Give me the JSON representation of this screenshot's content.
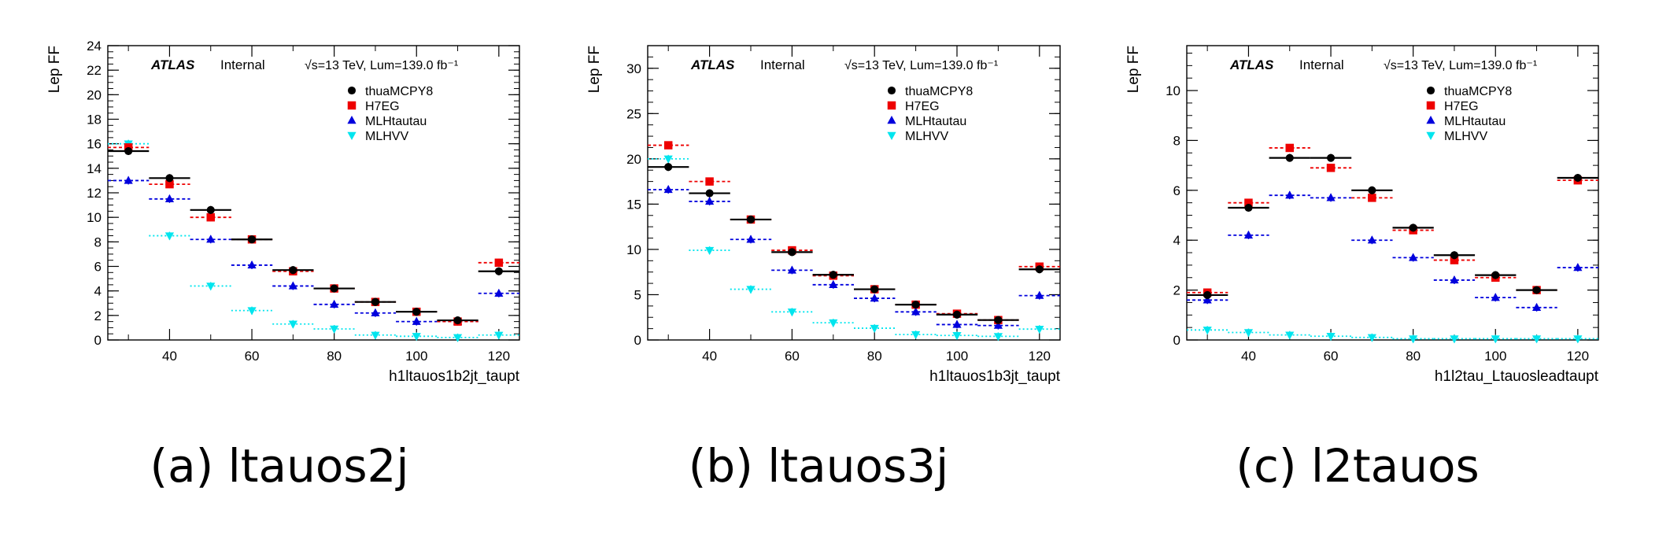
{
  "figure": {
    "ylabel": "Lep FF",
    "atlas_label": "ATLAS",
    "internal_label": "Internal",
    "energy_label": "√s=13 TeV, Lum=139.0 fb⁻¹",
    "legend": [
      "thuaMCPY8",
      "H7EG",
      "MLHtautau",
      "MLHVV"
    ],
    "colors": {
      "thuaMCPY8": "#000000",
      "H7EG": "#ee0000",
      "MLHtautau": "#0000dd",
      "MLHVV": "#00e5ee"
    }
  },
  "chart_data": [
    {
      "type": "scatter",
      "caption": "(a) ltauos2j",
      "xlabel": "h1ltauos1b2jt_taupt",
      "ylabel": "Lep FF",
      "xlim": [
        25,
        125
      ],
      "ylim": [
        0,
        24
      ],
      "xticks": [
        40,
        60,
        80,
        100,
        120
      ],
      "yticks": [
        0,
        2,
        4,
        6,
        8,
        10,
        12,
        14,
        16,
        18,
        20,
        22,
        24
      ],
      "legend_position": "top-right",
      "x": [
        30,
        40,
        50,
        60,
        70,
        80,
        90,
        100,
        110,
        120
      ],
      "series": [
        {
          "name": "thuaMCPY8",
          "marker": "circle",
          "values": [
            15.4,
            13.2,
            10.6,
            8.2,
            5.7,
            4.2,
            3.1,
            2.3,
            1.6,
            5.6
          ]
        },
        {
          "name": "H7EG",
          "marker": "square",
          "values": [
            15.7,
            12.7,
            10.0,
            8.2,
            5.6,
            4.2,
            3.1,
            2.3,
            1.5,
            6.3
          ]
        },
        {
          "name": "MLHtautau",
          "marker": "triangle-up",
          "values": [
            13.0,
            11.5,
            8.2,
            6.1,
            4.4,
            2.9,
            2.2,
            1.5,
            1.5,
            3.8
          ]
        },
        {
          "name": "MLHVV",
          "marker": "triangle-down",
          "values": [
            16.0,
            8.5,
            4.4,
            2.4,
            1.3,
            0.9,
            0.4,
            0.3,
            0.2,
            0.4
          ]
        }
      ]
    },
    {
      "type": "scatter",
      "caption": "(b) ltauos3j",
      "xlabel": "h1ltauos1b3jt_taupt",
      "ylabel": "Lep FF",
      "xlim": [
        25,
        125
      ],
      "ylim": [
        0,
        32.5
      ],
      "xticks": [
        40,
        60,
        80,
        100,
        120
      ],
      "yticks": [
        0,
        5,
        10,
        15,
        20,
        25,
        30
      ],
      "legend_position": "top-right",
      "x": [
        30,
        40,
        50,
        60,
        70,
        80,
        90,
        100,
        110,
        120
      ],
      "series": [
        {
          "name": "thuaMCPY8",
          "marker": "circle",
          "values": [
            19.1,
            16.2,
            13.3,
            9.7,
            7.2,
            5.6,
            3.9,
            2.8,
            2.2,
            7.8
          ]
        },
        {
          "name": "H7EG",
          "marker": "square",
          "values": [
            21.5,
            17.5,
            13.3,
            9.9,
            7.1,
            5.6,
            3.9,
            2.9,
            2.2,
            8.1
          ]
        },
        {
          "name": "MLHtautau",
          "marker": "triangle-up",
          "values": [
            16.6,
            15.3,
            11.1,
            7.7,
            6.1,
            4.6,
            3.1,
            1.7,
            1.6,
            4.9
          ]
        },
        {
          "name": "MLHVV",
          "marker": "triangle-down",
          "values": [
            20.0,
            9.9,
            5.6,
            3.1,
            1.9,
            1.3,
            0.6,
            0.5,
            0.4,
            1.2
          ]
        }
      ]
    },
    {
      "type": "scatter",
      "caption": "(c) l2tauos",
      "xlabel": "h1l2tau_Ltauosleadtaupt",
      "ylabel": "Lep FF",
      "xlim": [
        25,
        125
      ],
      "ylim": [
        0,
        11.8
      ],
      "xticks": [
        40,
        60,
        80,
        100,
        120
      ],
      "yticks": [
        0,
        2,
        4,
        6,
        8,
        10
      ],
      "legend_position": "top-right",
      "x": [
        30,
        40,
        50,
        60,
        70,
        80,
        90,
        100,
        110,
        120
      ],
      "series": [
        {
          "name": "thuaMCPY8",
          "marker": "circle",
          "values": [
            1.8,
            5.3,
            7.3,
            7.3,
            6.0,
            4.5,
            3.4,
            2.6,
            2.0,
            6.5
          ]
        },
        {
          "name": "H7EG",
          "marker": "square",
          "values": [
            1.9,
            5.5,
            7.7,
            6.9,
            5.7,
            4.4,
            3.2,
            2.5,
            2.0,
            6.4
          ]
        },
        {
          "name": "MLHtautau",
          "marker": "triangle-up",
          "values": [
            1.6,
            4.2,
            5.8,
            5.7,
            4.0,
            3.3,
            2.4,
            1.7,
            1.3,
            2.9
          ]
        },
        {
          "name": "MLHVV",
          "marker": "triangle-down",
          "values": [
            0.4,
            0.3,
            0.2,
            0.15,
            0.1,
            0.05,
            0.05,
            0.05,
            0.05,
            0.05
          ]
        }
      ]
    }
  ]
}
